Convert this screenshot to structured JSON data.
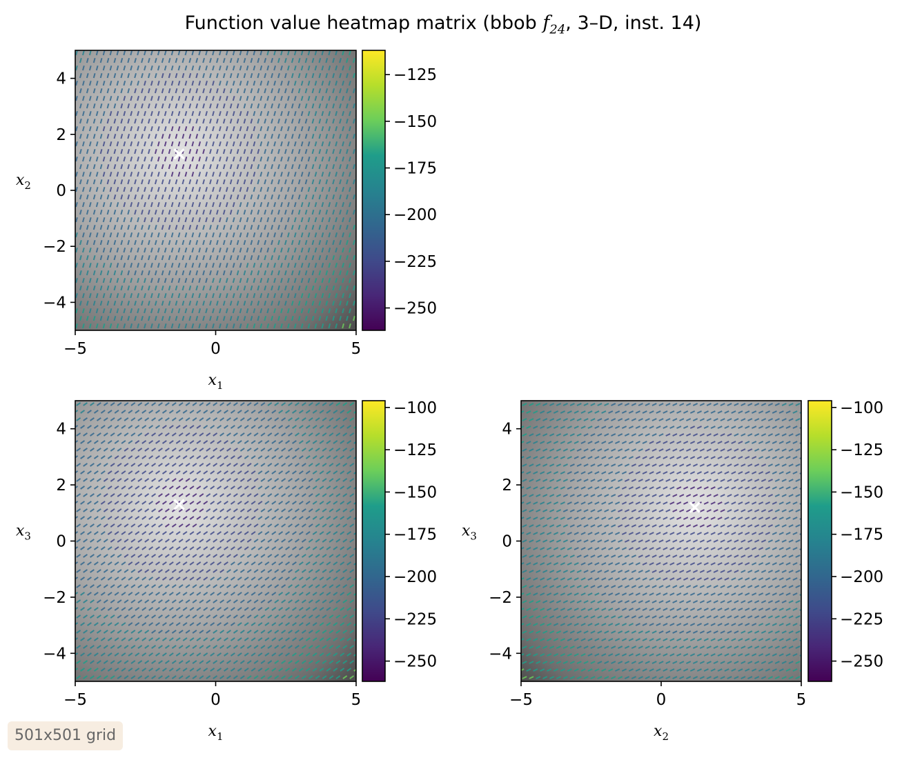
{
  "figure": {
    "title_prefix": "Function value heatmap matrix (bbob ",
    "title_func": "f",
    "title_sub": "24",
    "title_suffix": ", 3–D, inst. 14)",
    "grid_note": "501x501 grid"
  },
  "colors": {
    "viridis": [
      "#440154",
      "#482777",
      "#3f4a8a",
      "#31678e",
      "#26838f",
      "#1f9d8a",
      "#6cce5a",
      "#b6de2b",
      "#fee825"
    ],
    "marker": "#ffffff"
  },
  "chart_data": [
    {
      "type": "heatmap",
      "panel": "x1-x2",
      "xlabel": "x",
      "xlabel_sub": "1",
      "ylabel": "x",
      "ylabel_sub": "2",
      "xlim": [
        -5,
        5
      ],
      "ylim": [
        -5,
        5
      ],
      "xticks": [
        -5,
        0,
        5
      ],
      "yticks": [
        -4,
        -2,
        0,
        2,
        4
      ],
      "xtick_labels": [
        "−5",
        "0",
        "5"
      ],
      "ytick_labels": [
        "−4",
        "−2",
        "0",
        "2",
        "4"
      ],
      "colorbar": {
        "min": -262,
        "max": -112,
        "ticks": [
          -125,
          -150,
          -175,
          -200,
          -225,
          -250
        ],
        "tick_labels": [
          "−125",
          "−150",
          "−175",
          "−200",
          "−225",
          "−250"
        ]
      },
      "optimum": [
        -1.3,
        1.3
      ],
      "stripe_angle_deg": 75
    },
    {
      "type": "heatmap",
      "panel": "x1-x3",
      "xlabel": "x",
      "xlabel_sub": "1",
      "ylabel": "x",
      "ylabel_sub": "3",
      "xlim": [
        -5,
        5
      ],
      "ylim": [
        -5,
        5
      ],
      "xticks": [
        -5,
        0,
        5
      ],
      "yticks": [
        -4,
        -2,
        0,
        2,
        4
      ],
      "xtick_labels": [
        "−5",
        "0",
        "5"
      ],
      "ytick_labels": [
        "−4",
        "−2",
        "0",
        "2",
        "4"
      ],
      "colorbar": {
        "min": -262,
        "max": -96,
        "ticks": [
          -100,
          -125,
          -150,
          -175,
          -200,
          -225,
          -250
        ],
        "tick_labels": [
          "−100",
          "−125",
          "−150",
          "−175",
          "−200",
          "−225",
          "−250"
        ]
      },
      "optimum": [
        -1.3,
        1.3
      ],
      "stripe_angle_deg": 35
    },
    {
      "type": "heatmap",
      "panel": "x2-x3",
      "xlabel": "x",
      "xlabel_sub": "2",
      "ylabel": "x",
      "ylabel_sub": "3",
      "xlim": [
        -5,
        5
      ],
      "ylim": [
        -5,
        5
      ],
      "xticks": [
        -5,
        0,
        5
      ],
      "yticks": [
        -4,
        -2,
        0,
        2,
        4
      ],
      "xtick_labels": [
        "−5",
        "0",
        "5"
      ],
      "ytick_labels": [
        "−4",
        "−2",
        "0",
        "2",
        "4"
      ],
      "colorbar": {
        "min": -262,
        "max": -96,
        "ticks": [
          -100,
          -125,
          -150,
          -175,
          -200,
          -225,
          -250
        ],
        "tick_labels": [
          "−100",
          "−125",
          "−150",
          "−175",
          "−200",
          "−225",
          "−250"
        ]
      },
      "optimum": [
        1.2,
        1.2
      ],
      "stripe_angle_deg": 25
    }
  ]
}
